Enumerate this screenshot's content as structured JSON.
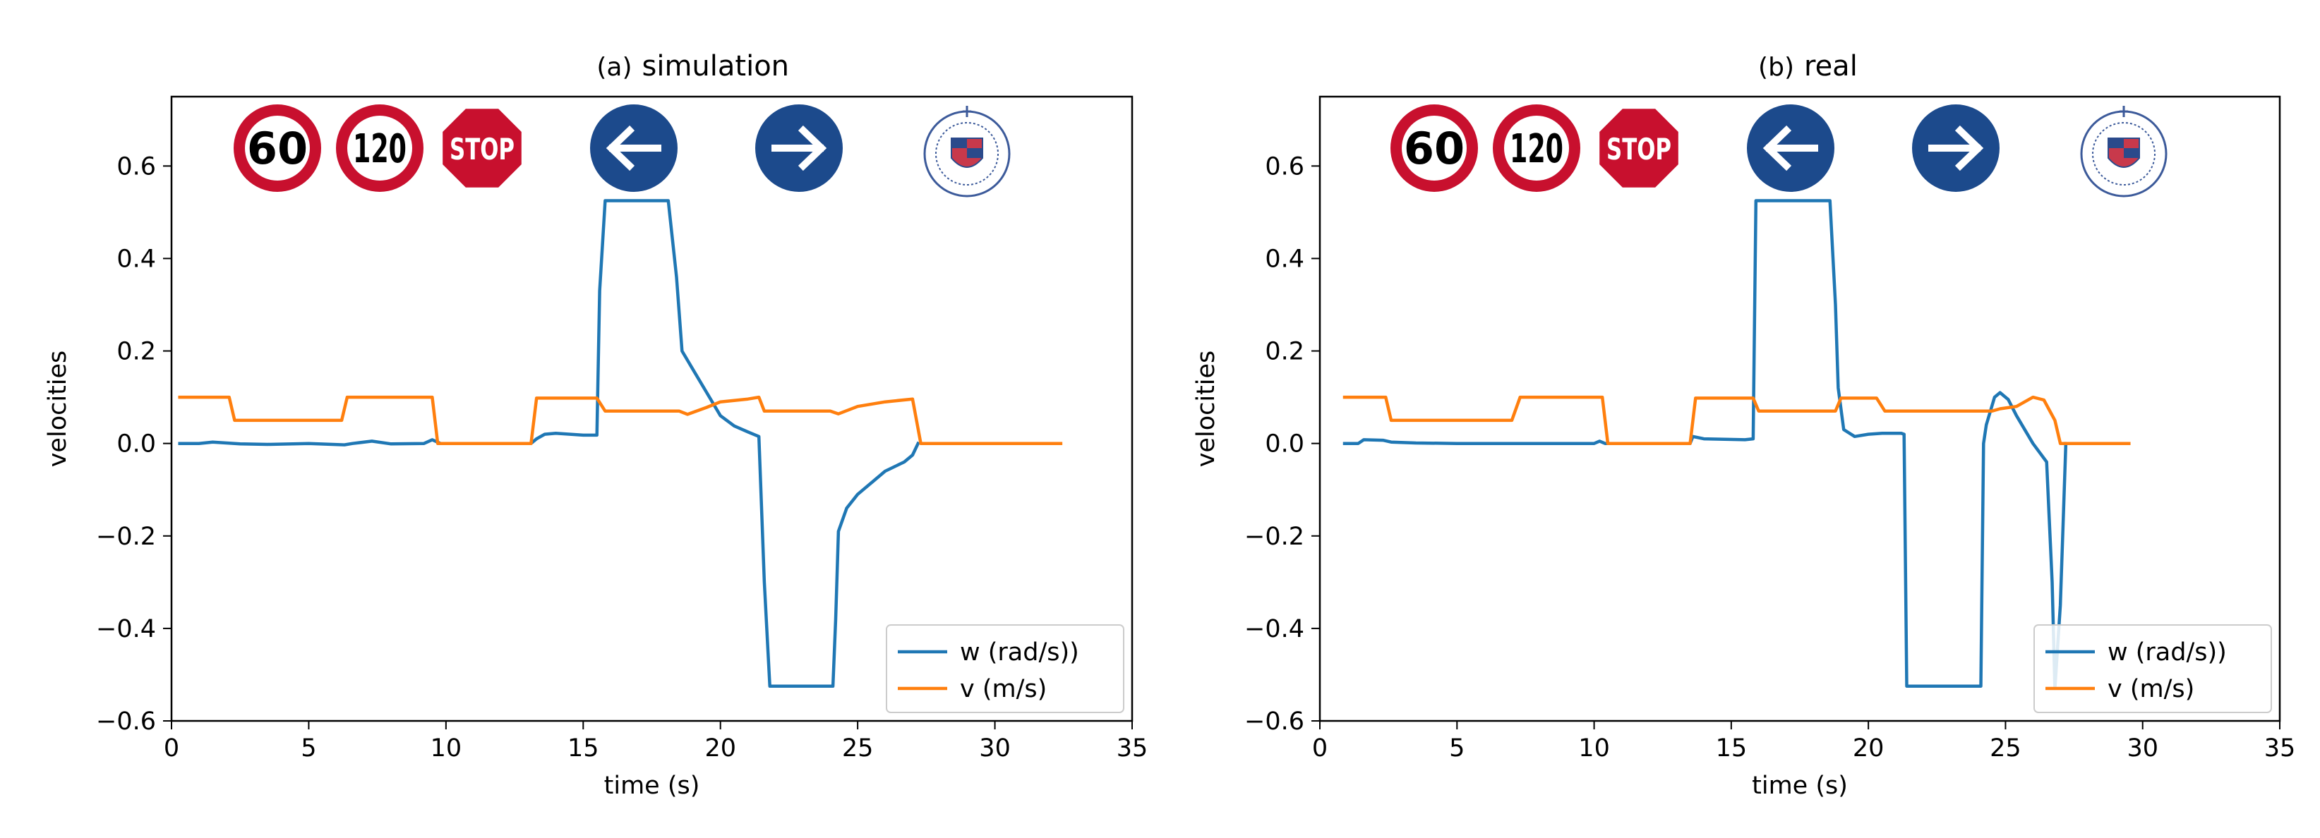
{
  "chart_data": [
    {
      "type": "line",
      "panel": "(a)",
      "title": "simulation",
      "xlabel": "time (s)",
      "ylabel": "velocities",
      "xlim": [
        0,
        35
      ],
      "ylim": [
        -0.6,
        0.75
      ],
      "xticks": [
        0,
        5,
        10,
        15,
        20,
        25,
        30,
        35
      ],
      "xtick_labels": [
        "0",
        "5",
        "10",
        "15",
        "20",
        "25",
        "30",
        "35"
      ],
      "yticks": [
        -0.6,
        -0.4,
        -0.2,
        0.0,
        0.2,
        0.4,
        0.6
      ],
      "ytick_labels": [
        "−0.6",
        "−0.4",
        "−0.2",
        "0.0",
        "0.2",
        "0.4",
        "0.6"
      ],
      "legend": [
        "w (rad/s))",
        "v (m/s)"
      ],
      "legend_position": "lower-right",
      "signs": [
        "speed-limit-60",
        "speed-limit-120",
        "stop-sign",
        "turn-left-sign",
        "turn-right-sign",
        "university-seal"
      ],
      "sign_texts": [
        "60",
        "120",
        "STOP"
      ],
      "series": [
        {
          "name": "w (rad/s))",
          "color": "#1f77b4",
          "x": [
            0.3,
            1.0,
            1.5,
            2.5,
            3.5,
            5,
            6.3,
            6.6,
            7.3,
            8.0,
            9.2,
            9.5,
            9.8,
            13.1,
            13.3,
            13.6,
            14.0,
            15.0,
            15.5,
            15.6,
            15.8,
            18.1,
            18.4,
            18.6,
            19.0,
            19.5,
            20.0,
            20.5,
            21.0,
            21.4,
            21.6,
            21.8,
            24.1,
            24.2,
            24.3,
            24.6,
            25.0,
            25.6,
            26.0,
            26.7,
            27.0,
            27.2
          ],
          "values": [
            0.0,
            0.0,
            0.003,
            -0.001,
            -0.002,
            0.0,
            -0.003,
            0.0,
            0.005,
            -0.001,
            0.0,
            0.008,
            0.0,
            0.0,
            0.01,
            0.02,
            0.022,
            0.018,
            0.018,
            0.33,
            0.525,
            0.525,
            0.36,
            0.2,
            0.16,
            0.11,
            0.06,
            0.038,
            0.025,
            0.015,
            -0.3,
            -0.525,
            -0.525,
            -0.38,
            -0.19,
            -0.14,
            -0.11,
            -0.08,
            -0.06,
            -0.04,
            -0.025,
            0.0
          ]
        },
        {
          "name": "v (m/s)",
          "color": "#ff7f0e",
          "x": [
            0.3,
            2.1,
            2.3,
            6.2,
            6.4,
            9.5,
            9.7,
            13.1,
            13.3,
            15.5,
            15.8,
            18.5,
            18.8,
            19.5,
            20.0,
            21.0,
            21.4,
            21.6,
            24.0,
            24.3,
            25.0,
            26.0,
            27.0,
            27.3,
            32.4
          ],
          "values": [
            0.1,
            0.1,
            0.05,
            0.05,
            0.1,
            0.1,
            0.0,
            0.0,
            0.098,
            0.098,
            0.07,
            0.07,
            0.063,
            0.078,
            0.09,
            0.096,
            0.1,
            0.07,
            0.07,
            0.064,
            0.08,
            0.09,
            0.096,
            0.0,
            0.0
          ]
        }
      ]
    },
    {
      "type": "line",
      "panel": "(b)",
      "title": "real",
      "xlabel": "time (s)",
      "ylabel": "velocities",
      "xlim": [
        0,
        35
      ],
      "ylim": [
        -0.6,
        0.75
      ],
      "xticks": [
        0,
        5,
        10,
        15,
        20,
        25,
        30,
        35
      ],
      "xtick_labels": [
        "0",
        "5",
        "10",
        "15",
        "20",
        "25",
        "30",
        "35"
      ],
      "yticks": [
        -0.6,
        -0.4,
        -0.2,
        0.0,
        0.2,
        0.4,
        0.6
      ],
      "ytick_labels": [
        "−0.6",
        "−0.4",
        "−0.2",
        "0.0",
        "0.2",
        "0.4",
        "0.6"
      ],
      "legend": [
        "w (rad/s))",
        "v (m/s)"
      ],
      "legend_position": "lower-right",
      "signs": [
        "speed-limit-60",
        "speed-limit-120",
        "stop-sign",
        "turn-left-sign",
        "turn-right-sign",
        "university-seal"
      ],
      "sign_texts": [
        "60",
        "120",
        "STOP"
      ],
      "series": [
        {
          "name": "w (rad/s))",
          "color": "#1f77b4",
          "x": [
            0.9,
            1.4,
            1.6,
            2.3,
            2.6,
            3.5,
            5,
            7.0,
            10.0,
            10.2,
            10.4,
            13.5,
            13.6,
            14.0,
            15.5,
            15.8,
            15.9,
            18.6,
            18.8,
            18.9,
            19.1,
            19.5,
            20.0,
            20.5,
            21.2,
            21.3,
            21.4,
            24.1,
            24.2,
            24.3,
            24.6,
            24.8,
            25.1,
            25.4,
            26.0,
            26.5,
            26.7,
            26.8,
            27.0,
            27.2
          ],
          "values": [
            0.0,
            0.0,
            0.008,
            0.007,
            0.003,
            0.001,
            0.0,
            0.0,
            0.0,
            0.005,
            0.0,
            0.0,
            0.015,
            0.01,
            0.008,
            0.01,
            0.525,
            0.525,
            0.3,
            0.12,
            0.03,
            0.015,
            0.02,
            0.022,
            0.022,
            0.02,
            -0.525,
            -0.525,
            0.0,
            0.04,
            0.1,
            0.11,
            0.095,
            0.06,
            0.0,
            -0.04,
            -0.3,
            -0.53,
            -0.35,
            0.0
          ]
        },
        {
          "name": "v (m/s)",
          "color": "#ff7f0e",
          "x": [
            0.9,
            2.4,
            2.6,
            7.0,
            7.3,
            10.3,
            10.5,
            13.5,
            13.7,
            15.8,
            16.0,
            18.8,
            19.0,
            20.3,
            20.6,
            24.5,
            24.8,
            25.4,
            26.0,
            26.4,
            26.8,
            27.0,
            29.5
          ],
          "values": [
            0.1,
            0.1,
            0.05,
            0.05,
            0.1,
            0.1,
            0.0,
            0.0,
            0.098,
            0.098,
            0.07,
            0.07,
            0.098,
            0.098,
            0.07,
            0.07,
            0.075,
            0.08,
            0.1,
            0.094,
            0.05,
            0.0,
            0.0
          ]
        }
      ]
    }
  ]
}
